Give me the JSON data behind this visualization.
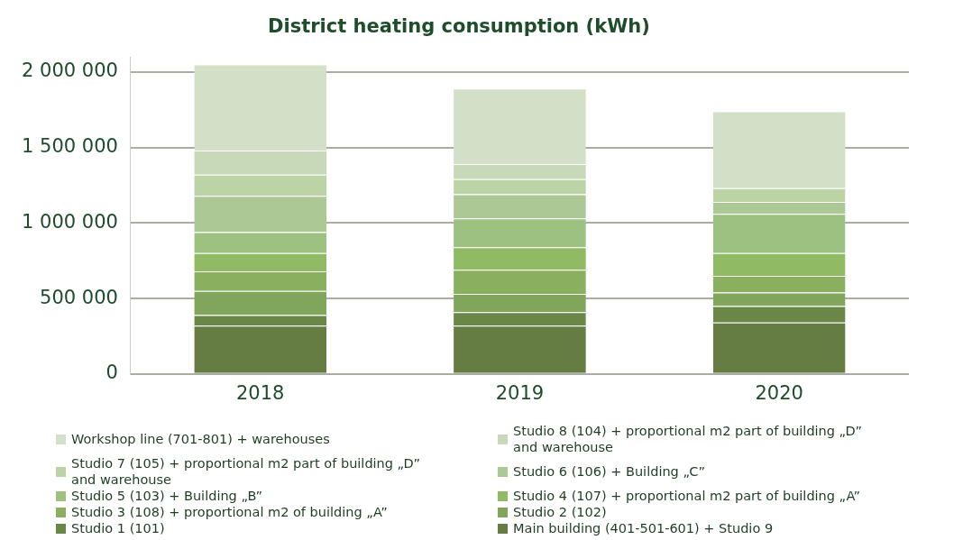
{
  "chart_data": {
    "type": "bar",
    "stacked": true,
    "title": "District heating consumption (kWh)",
    "categories": [
      "2018",
      "2019",
      "2020"
    ],
    "ylim": [
      0,
      2100000
    ],
    "yticks": [
      {
        "value": 0,
        "label": "0"
      },
      {
        "value": 500000,
        "label": "500 000"
      },
      {
        "value": 1000000,
        "label": "1 000 000"
      },
      {
        "value": 1500000,
        "label": "1 500 000"
      },
      {
        "value": 2000000,
        "label": "2 000 000"
      }
    ],
    "grid": "y",
    "legend": "bottom",
    "series": [
      {
        "name": "Main building (401-501-601) + Studio 9",
        "color": "#657d42",
        "values": [
          320000,
          320000,
          340000
        ]
      },
      {
        "name": "Studio 1 (101)",
        "color": "#6b8747",
        "values": [
          70000,
          90000,
          110000
        ]
      },
      {
        "name": "Studio 2 (102)",
        "color": "#82a55c",
        "values": [
          160000,
          120000,
          90000
        ]
      },
      {
        "name": "Studio 3 (108) + proportional m2 of building „A”",
        "color": "#8aaf5f",
        "values": [
          130000,
          160000,
          110000
        ]
      },
      {
        "name": "Studio 4 (107) + proportional m2 part of building „A”",
        "color": "#90bb64",
        "values": [
          120000,
          150000,
          150000
        ]
      },
      {
        "name": "Studio 5 (103) + Building „B”",
        "color": "#9dc181",
        "values": [
          140000,
          190000,
          260000
        ]
      },
      {
        "name": "Studio 6 (106) + Building „C”",
        "color": "#acc995",
        "values": [
          240000,
          160000,
          80000
        ]
      },
      {
        "name": "Studio 7 (105) + proportional m2 part of building „D” and warehouse",
        "color": "#bcd3a6",
        "values": [
          140000,
          100000,
          90000
        ]
      },
      {
        "name": "Studio 8 (104) + proportional m2 part of building „D” and warehouse",
        "color": "#c7d9b8",
        "values": [
          160000,
          100000,
          0
        ]
      },
      {
        "name": "Workshop line (701-801) + warehouses",
        "color": "#d3e0c7",
        "values": [
          570000,
          500000,
          510000
        ]
      }
    ]
  }
}
